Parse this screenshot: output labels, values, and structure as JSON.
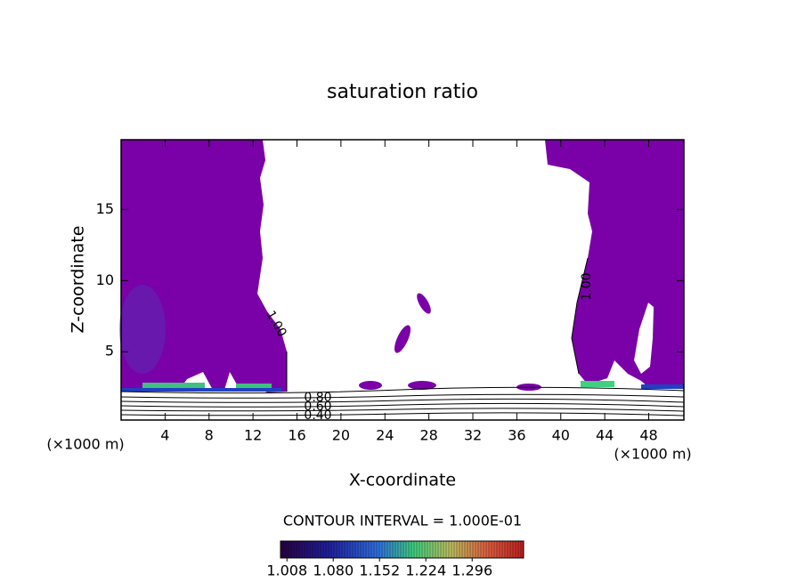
{
  "chart_data": {
    "type": "contour",
    "title": "saturation ratio",
    "x_label": "X-coordinate",
    "y_label": "Z-coordinate",
    "x_unit": "(×1000 m)",
    "y_unit": "(×1000 m)",
    "xlim": [
      0,
      51.2
    ],
    "ylim": [
      0.2,
      19.9
    ],
    "xticks": [
      4,
      8,
      12,
      16,
      20,
      24,
      28,
      32,
      36,
      40,
      44,
      48
    ],
    "yticks": [
      5,
      10,
      15
    ],
    "fill_color": "#7a00a8",
    "contour_labels": [
      "1.00",
      "1.00",
      "0.80",
      "0.60",
      "0.40"
    ],
    "contour_interval": "CONTOUR INTERVAL = 1.000E-01",
    "clim": [
      0.998,
      1.376
    ],
    "colorbar_ticks": [
      {
        "value": 1.008,
        "label": "1.008"
      },
      {
        "value": 1.08,
        "label": "1.080"
      },
      {
        "value": 1.152,
        "label": "1.152"
      },
      {
        "value": 1.224,
        "label": "1.224"
      },
      {
        "value": 1.296,
        "label": "1.296"
      }
    ]
  }
}
